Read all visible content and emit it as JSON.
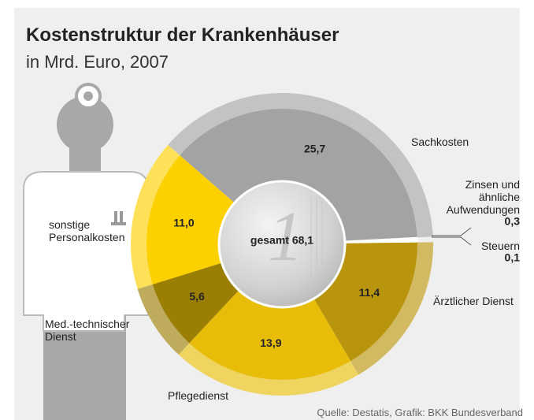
{
  "chart_data": {
    "type": "pie",
    "title": "Kostenstruktur der Krankenhäuser",
    "subtitle": "in Mrd. Euro, 2007",
    "categories": [
      "Sachkosten",
      "Zinsen und ähnliche Aufwendungen",
      "Steuern",
      "Ärztlicher Dienst",
      "Pflegedienst",
      "Med.-technischer Dienst",
      "sonstige Personalkosten"
    ],
    "values": [
      25.7,
      0.3,
      0.1,
      11.4,
      13.9,
      5.6,
      11.0
    ],
    "value_labels": [
      "25,7",
      "0,3",
      "0,1",
      "11,4",
      "13,9",
      "5,6",
      "11,0"
    ],
    "colors": [
      "#a3a3a3",
      "#ffffff",
      "#ffffff",
      "#b8950c",
      "#e8bd0a",
      "#9b7e04",
      "#fdd100"
    ],
    "total": {
      "value": 68.1,
      "label": "gesamt 68,1"
    },
    "source": "Quelle: Destatis, Grafik: BKK Bundesverband"
  }
}
